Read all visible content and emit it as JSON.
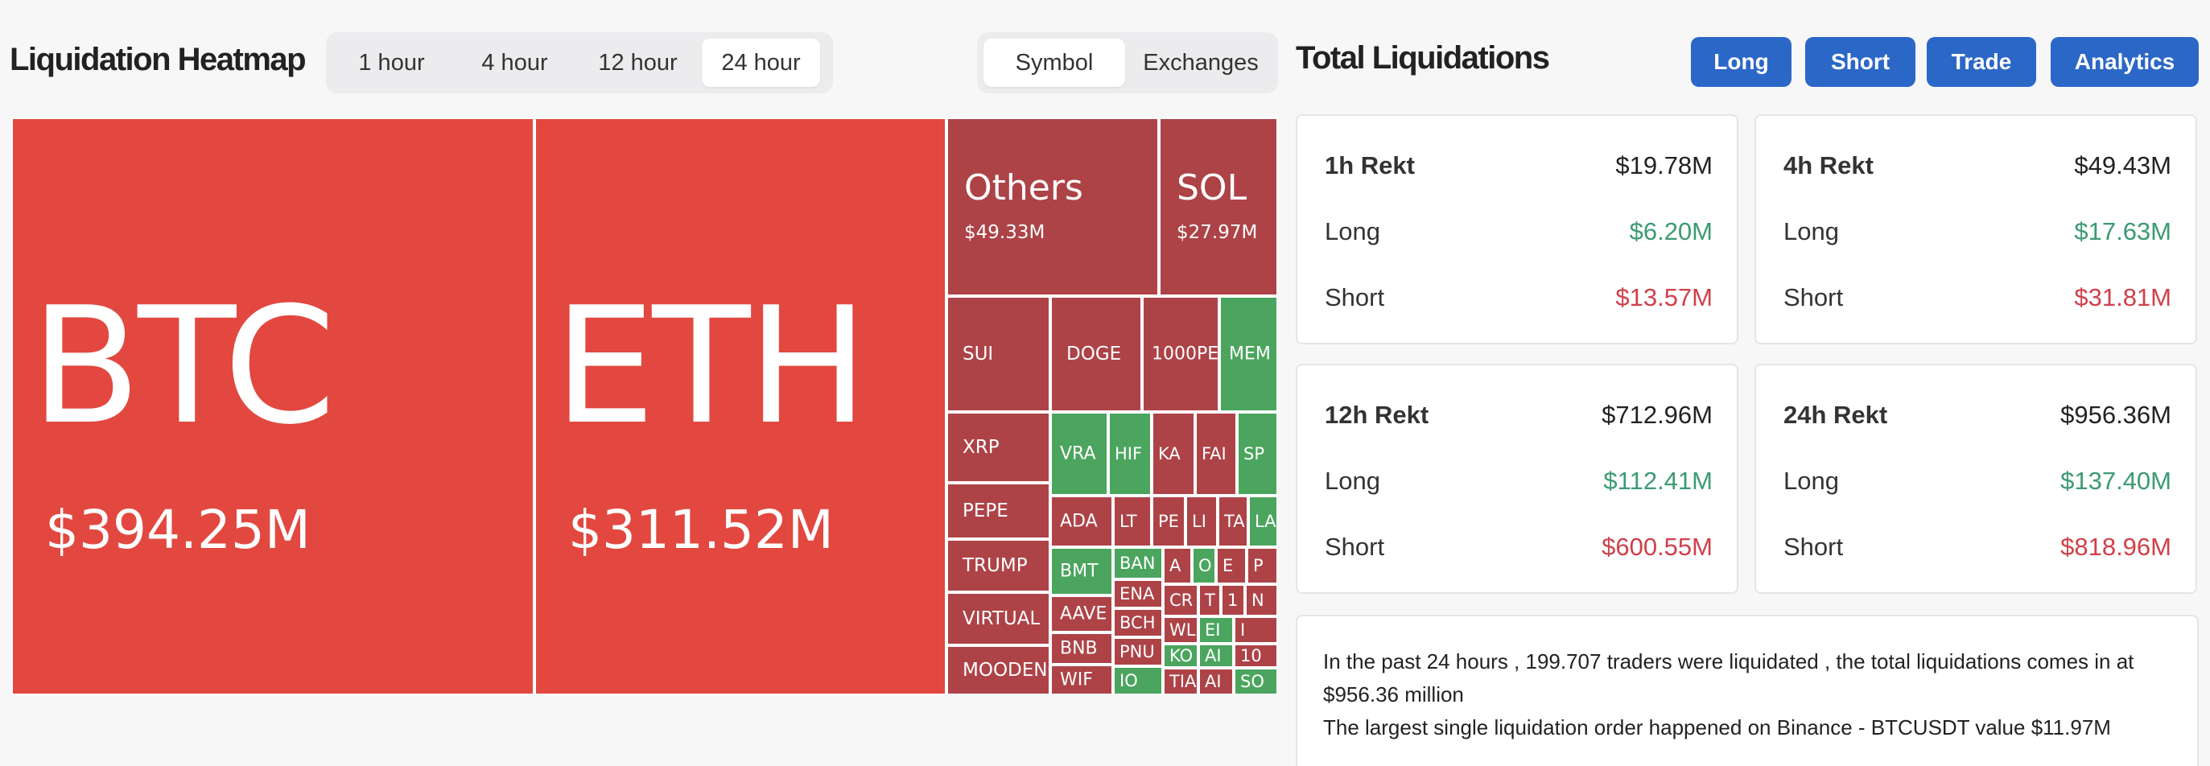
{
  "heatmap": {
    "title": "Liquidation Heatmap",
    "time_ranges": [
      "1 hour",
      "4 hour",
      "12 hour",
      "24 hour"
    ],
    "active_time_range": "24 hour",
    "views": [
      "Symbol",
      "Exchanges"
    ],
    "active_view": "Symbol",
    "tiles": {
      "btc": {
        "symbol": "BTC",
        "value": "$394.25M"
      },
      "eth": {
        "symbol": "ETH",
        "value": "$311.52M"
      },
      "others": {
        "symbol": "Others",
        "value": "$49.33M"
      },
      "sol": {
        "symbol": "SOL",
        "value": "$27.97M"
      },
      "small": [
        "SUI",
        "DOGE",
        "1000PE",
        "MEM",
        "XRP",
        "VRA",
        "HIF",
        "KA",
        "FAI",
        "SP",
        "PEPE",
        "ADA",
        "LT",
        "PE",
        "LI",
        "TA",
        "LA",
        "TRUMP",
        "BMT",
        "BAN",
        "A",
        "O",
        "E",
        "P",
        "ENA",
        "AAVE",
        "BCH",
        "CR",
        "T",
        "1",
        "N",
        "VIRTUAL",
        "BNB",
        "WL",
        "EI",
        "I",
        "PNU",
        "KO",
        "AI",
        "MOODENG",
        "WIF",
        "IO",
        "TIA",
        "AI",
        "10",
        "SO"
      ]
    }
  },
  "totals": {
    "title": "Total Liquidations",
    "buttons": [
      "Long",
      "Short",
      "Trade",
      "Analytics"
    ],
    "cards": [
      {
        "title": "1h Rekt",
        "total": "$19.78M",
        "long_label": "Long",
        "long": "$6.20M",
        "short_label": "Short",
        "short": "$13.57M"
      },
      {
        "title": "4h Rekt",
        "total": "$49.43M",
        "long_label": "Long",
        "long": "$17.63M",
        "short_label": "Short",
        "short": "$31.81M"
      },
      {
        "title": "12h Rekt",
        "total": "$712.96M",
        "long_label": "Long",
        "long": "$112.41M",
        "short_label": "Short",
        "short": "$600.55M"
      },
      {
        "title": "24h Rekt",
        "total": "$956.36M",
        "long_label": "Long",
        "long": "$137.40M",
        "short_label": "Short",
        "short": "$818.96M"
      }
    ],
    "summary_line1": "In the past 24 hours , 199.707 traders were liquidated , the total liquidations comes in at $956.36 million",
    "summary_line2": "The largest single liquidation order happened on Binance - BTCUSDT value $11.97M"
  },
  "colors": {
    "accent": "#2b67c7",
    "tile_red_large": "#e2483f",
    "tile_red": "#ad4347",
    "tile_green": "#4ba55e",
    "long_green": "#3c9a73",
    "short_red": "#d0404a"
  }
}
